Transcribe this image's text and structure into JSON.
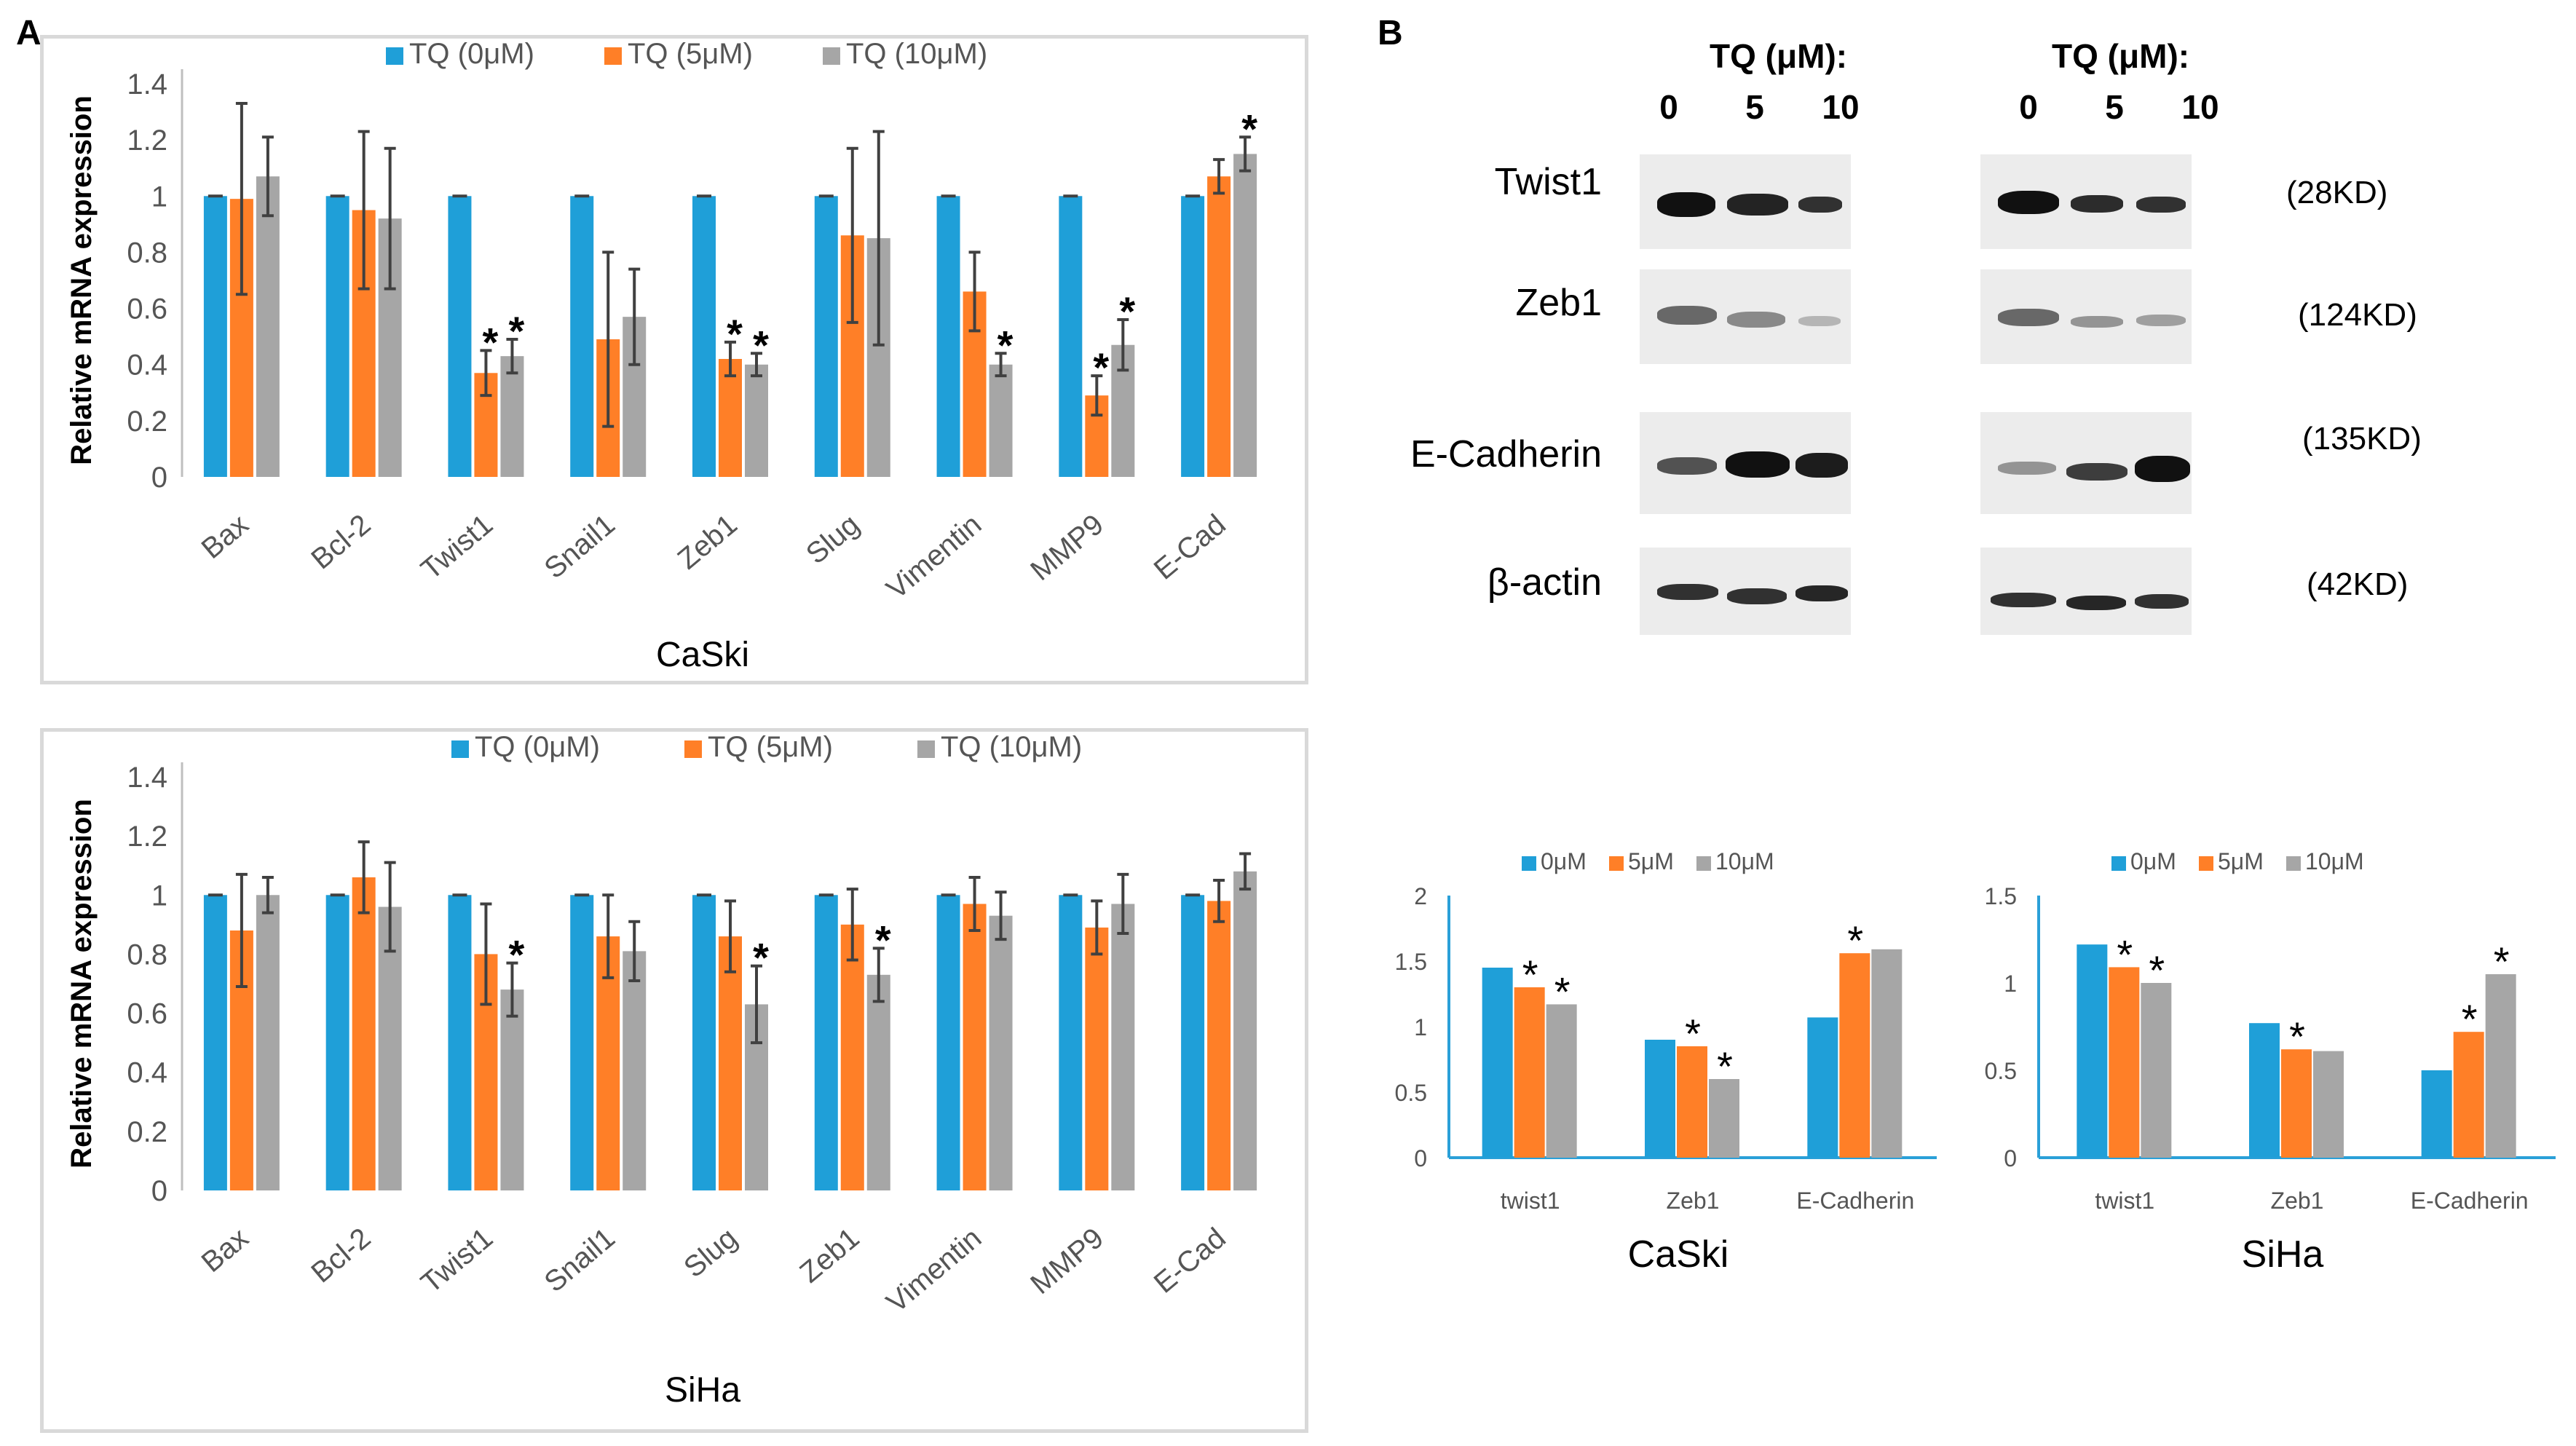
{
  "panels": {
    "a_label": "A",
    "b_label": "B"
  },
  "colors": {
    "blue": "#1f9fd8",
    "orange": "#ff7f27",
    "gray": "#a6a6a6",
    "axis_small": "#2aa0d8"
  },
  "chart_data": [
    {
      "id": "caski_mrna",
      "type": "bar",
      "title": "CaSki",
      "ylabel": "Relative mRNA expression",
      "ylim": [
        0,
        1.4
      ],
      "yticks": [
        "0",
        "0.2",
        "0.4",
        "0.6",
        "0.8",
        "1",
        "1.2",
        "1.4"
      ],
      "categories": [
        "Bax",
        "Bcl-2",
        "Twist1",
        "Snail1",
        "Zeb1",
        "Slug",
        "Vimentin",
        "MMP9",
        "E-Cad"
      ],
      "series": [
        {
          "name": "TQ (0μM)",
          "values": [
            1,
            1,
            1,
            1,
            1,
            1,
            1,
            1,
            1
          ],
          "errors": [
            0,
            0,
            0,
            0,
            0,
            0,
            0,
            0,
            0
          ]
        },
        {
          "name": "TQ (5μM)",
          "values": [
            0.99,
            0.95,
            0.37,
            0.49,
            0.42,
            0.86,
            0.66,
            0.29,
            1.07
          ],
          "errors": [
            0.34,
            0.28,
            0.08,
            0.31,
            0.06,
            0.31,
            0.14,
            0.07,
            0.06
          ]
        },
        {
          "name": "TQ (10μM)",
          "values": [
            1.07,
            0.92,
            0.43,
            0.57,
            0.4,
            0.85,
            0.4,
            0.47,
            1.15
          ],
          "errors": [
            0.14,
            0.25,
            0.06,
            0.17,
            0.04,
            0.38,
            0.04,
            0.09,
            0.06
          ]
        }
      ],
      "significance": [
        [
          false,
          false,
          false
        ],
        [
          false,
          false,
          false
        ],
        [
          false,
          true,
          true
        ],
        [
          false,
          false,
          false
        ],
        [
          false,
          true,
          true
        ],
        [
          false,
          false,
          false
        ],
        [
          false,
          false,
          true
        ],
        [
          false,
          true,
          true
        ],
        [
          false,
          false,
          true
        ]
      ],
      "star": "*"
    },
    {
      "id": "siha_mrna",
      "type": "bar",
      "title": "SiHa",
      "ylabel": "Relative mRNA expression",
      "ylim": [
        0,
        1.4
      ],
      "yticks": [
        "0",
        "0.2",
        "0.4",
        "0.6",
        "0.8",
        "1",
        "1.2",
        "1.4"
      ],
      "categories": [
        "Bax",
        "Bcl-2",
        "Twist1",
        "Snail1",
        "Slug",
        "Zeb1",
        "Vimentin",
        "MMP9",
        "E-Cad"
      ],
      "series": [
        {
          "name": "TQ (0μM)",
          "values": [
            1,
            1,
            1,
            1,
            1,
            1,
            1,
            1,
            1
          ],
          "errors": [
            0,
            0,
            0,
            0,
            0,
            0,
            0,
            0,
            0
          ]
        },
        {
          "name": "TQ (5μM)",
          "values": [
            0.88,
            1.06,
            0.8,
            0.86,
            0.86,
            0.9,
            0.97,
            0.89,
            0.98
          ],
          "errors": [
            0.19,
            0.12,
            0.17,
            0.14,
            0.12,
            0.12,
            0.09,
            0.09,
            0.07
          ]
        },
        {
          "name": "TQ (10μM)",
          "values": [
            1.0,
            0.96,
            0.68,
            0.81,
            0.63,
            0.73,
            0.93,
            0.97,
            1.08
          ],
          "errors": [
            0.06,
            0.15,
            0.09,
            0.1,
            0.13,
            0.09,
            0.08,
            0.1,
            0.06
          ]
        }
      ],
      "significance": [
        [
          false,
          false,
          false
        ],
        [
          false,
          false,
          false
        ],
        [
          false,
          false,
          true
        ],
        [
          false,
          false,
          false
        ],
        [
          false,
          false,
          true
        ],
        [
          false,
          false,
          true
        ],
        [
          false,
          false,
          false
        ],
        [
          false,
          false,
          false
        ],
        [
          false,
          false,
          false
        ]
      ],
      "star": "*"
    },
    {
      "id": "caski_protein",
      "type": "bar",
      "title": "CaSki",
      "ylim": [
        0,
        2
      ],
      "yticks": [
        "0",
        "0.5",
        "1",
        "1.5",
        "2"
      ],
      "categories": [
        "twist1",
        "Zeb1",
        "E-Cadherin"
      ],
      "series": [
        {
          "name": "0μM",
          "values": [
            1.45,
            0.9,
            1.07
          ]
        },
        {
          "name": "5μM",
          "values": [
            1.3,
            0.85,
            1.56
          ]
        },
        {
          "name": "10μM",
          "values": [
            1.17,
            0.6,
            1.59
          ]
        }
      ],
      "significance": [
        [
          false,
          true,
          true
        ],
        [
          false,
          true,
          true
        ],
        [
          false,
          true,
          false
        ]
      ],
      "star": "*"
    },
    {
      "id": "siha_protein",
      "type": "bar",
      "title": "SiHa",
      "ylim": [
        0,
        1.5
      ],
      "yticks": [
        "0",
        "0.5",
        "1",
        "1.5"
      ],
      "categories": [
        "twist1",
        "Zeb1",
        "E-Cadherin"
      ],
      "series": [
        {
          "name": "0μM",
          "values": [
            1.22,
            0.77,
            0.5
          ]
        },
        {
          "name": "5μM",
          "values": [
            1.09,
            0.62,
            0.72
          ]
        },
        {
          "name": "10μM",
          "values": [
            1.0,
            0.61,
            1.05
          ]
        }
      ],
      "significance": [
        [
          false,
          true,
          true
        ],
        [
          false,
          true,
          false
        ],
        [
          false,
          true,
          true
        ]
      ],
      "star": "*"
    }
  ],
  "western": {
    "tq_header": "TQ (μM):",
    "lanes": [
      "0",
      "5",
      "10"
    ],
    "proteins": [
      {
        "name": "Twist1",
        "kd": "(28KD)"
      },
      {
        "name": "Zeb1",
        "kd": "(124KD)"
      },
      {
        "name": "E-Cadherin",
        "kd": "(135KD)"
      },
      {
        "name": "β-actin",
        "kd": "(42KD)"
      }
    ]
  }
}
